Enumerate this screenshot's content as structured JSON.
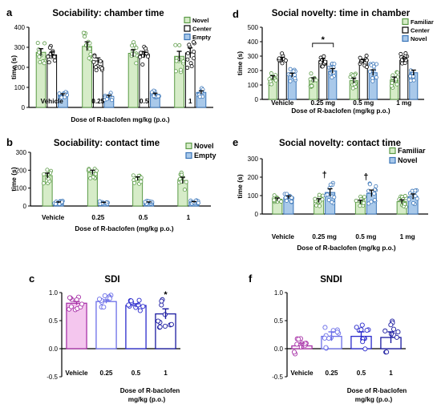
{
  "chart_data": [
    {
      "id": "a",
      "type": "bar",
      "panel_label": "a",
      "title": "Sociability: chamber time",
      "ylabel": "time (s)",
      "xlabel": "Dose of R-baclofen mg/kg (p.o.)",
      "ylim": [
        0,
        400
      ],
      "yticks": [
        0,
        100,
        200,
        300,
        400
      ],
      "categories": [
        "Vehicle",
        "0.25",
        "0.5",
        "1"
      ],
      "legend_position": "top-right",
      "series": [
        {
          "name": "Novel",
          "fill": "#d6ecc8",
          "stroke": "#5a9a45",
          "values": [
            275,
            305,
            270,
            255
          ],
          "errors": [
            18,
            22,
            18,
            25
          ]
        },
        {
          "name": "Center",
          "fill": "#ffffff",
          "stroke": "#000000",
          "values": [
            262,
            232,
            262,
            272
          ],
          "errors": [
            14,
            15,
            15,
            25
          ]
        },
        {
          "name": "Empty",
          "fill": "#a9c9ea",
          "stroke": "#3a75b8",
          "values": [
            62,
            55,
            65,
            75
          ],
          "errors": [
            6,
            6,
            6,
            8
          ]
        }
      ],
      "annotations": []
    },
    {
      "id": "d",
      "type": "bar",
      "panel_label": "d",
      "title": "Social novelty: time in chamber",
      "ylabel": "time (s)",
      "xlabel": "Dose of R-baclofen (mg/kg p.o.)",
      "ylim": [
        0,
        500
      ],
      "yticks": [
        0,
        100,
        200,
        300,
        400,
        500
      ],
      "categories": [
        "Vehicle",
        "0.25 mg",
        "0.5 mg",
        "1 mg"
      ],
      "legend_position": "top-right",
      "series": [
        {
          "name": "Familiar",
          "fill": "#d6ecc8",
          "stroke": "#5a9a45",
          "values": [
            150,
            135,
            130,
            135
          ],
          "errors": [
            14,
            15,
            18,
            20
          ]
        },
        {
          "name": "Center",
          "fill": "#ffffff",
          "stroke": "#000000",
          "values": [
            278,
            268,
            262,
            272
          ],
          "errors": [
            14,
            14,
            14,
            15
          ]
        },
        {
          "name": "Novel",
          "fill": "#a9c9ea",
          "stroke": "#3a75b8",
          "values": [
            168,
            198,
            185,
            185
          ],
          "errors": [
            14,
            16,
            20,
            18
          ]
        }
      ],
      "annotations": [
        {
          "text": "*",
          "category_index": 1,
          "bracket": true
        }
      ]
    },
    {
      "id": "b",
      "type": "bar",
      "panel_label": "b",
      "title": "Sociability: contact time",
      "ylabel": "time (s)",
      "xlabel": "Dose of R-baclofen (mg/kg p.o.)",
      "ylim": [
        0,
        300
      ],
      "yticks": [
        0,
        100,
        200,
        300
      ],
      "categories": [
        "Vehicle",
        "0.25",
        "0.5",
        "1"
      ],
      "legend_position": "top-right",
      "series": [
        {
          "name": "Novel",
          "fill": "#d6ecc8",
          "stroke": "#5a9a45",
          "values": [
            170,
            188,
            153,
            143
          ],
          "errors": [
            14,
            12,
            10,
            18
          ]
        },
        {
          "name": "Empty",
          "fill": "#a9c9ea",
          "stroke": "#3a75b8",
          "values": [
            20,
            18,
            20,
            22
          ],
          "errors": [
            3,
            3,
            3,
            3
          ]
        }
      ],
      "annotations": []
    },
    {
      "id": "e",
      "type": "bar",
      "panel_label": "e",
      "title": "Social novelty: contact time",
      "ylabel": "time (s)",
      "xlabel": "Dose of R-baclofen (mg/kg p.o.)",
      "ylim": [
        0,
        300
      ],
      "yticks": [
        0,
        100,
        200,
        300
      ],
      "categories": [
        "Vehicle",
        "0.25 mg",
        "0.5 mg",
        "1 mg"
      ],
      "legend_position": "top-right",
      "series": [
        {
          "name": "Familiar",
          "fill": "#d6ecc8",
          "stroke": "#5a9a45",
          "values": [
            80,
            73,
            65,
            67
          ],
          "errors": [
            7,
            10,
            10,
            10
          ]
        },
        {
          "name": "Novel",
          "fill": "#a9c9ea",
          "stroke": "#3a75b8",
          "values": [
            90,
            117,
            112,
            95
          ],
          "errors": [
            8,
            20,
            18,
            14
          ]
        }
      ],
      "annotations": [
        {
          "text": "†",
          "category_index": 1
        },
        {
          "text": "†",
          "category_index": 2
        }
      ]
    },
    {
      "id": "c",
      "type": "bar",
      "panel_label": "c",
      "title": "SDI",
      "ylabel": "",
      "xlabel": "Dose of R-baclofen mg/kg (p.o.)",
      "ylim": [
        -0.5,
        1.0
      ],
      "yticks": [
        -0.5,
        0.0,
        0.5,
        1.0
      ],
      "categories": [
        "Vehicle",
        "0.25",
        "0.5",
        "1"
      ],
      "bar_fills": [
        "#f4c6ee",
        "#ffffff",
        "#ffffff",
        "#ffffff"
      ],
      "bar_strokes": [
        "#a833a8",
        "#6b6ee8",
        "#2a2acc",
        "#1a1aa0"
      ],
      "values": [
        0.81,
        0.84,
        0.77,
        0.62
      ],
      "errors": [
        0.03,
        0.03,
        0.03,
        0.09
      ],
      "annotations": [
        {
          "text": "*",
          "category_index": 3
        }
      ]
    },
    {
      "id": "f",
      "type": "bar",
      "panel_label": "f",
      "title": "SNDI",
      "ylabel": "",
      "xlabel": "Dose of R-baclofen mg/kg (p.o.)",
      "ylim": [
        -0.5,
        1.0
      ],
      "yticks": [
        -0.5,
        0.0,
        0.5,
        1.0
      ],
      "categories": [
        "Vehicle",
        "0.25",
        "0.5",
        "1"
      ],
      "bar_fills": [
        "#ffffff",
        "#ffffff",
        "#ffffff",
        "#ffffff"
      ],
      "bar_strokes": [
        "#a833a8",
        "#6b6ee8",
        "#2a2acc",
        "#1a1aa0"
      ],
      "values": [
        0.05,
        0.22,
        0.22,
        0.2
      ],
      "errors": [
        0.05,
        0.08,
        0.08,
        0.1
      ],
      "annotations": []
    }
  ]
}
